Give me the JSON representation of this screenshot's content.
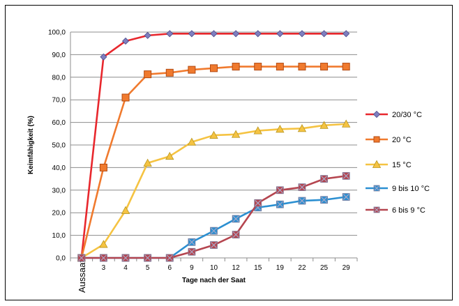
{
  "chart_data": {
    "type": "line",
    "xlabel": "Tage nach der Saat",
    "ylabel": "Keimfähigkeit (%)",
    "categories": [
      "Aussaat",
      "3",
      "4",
      "5",
      "6",
      "9",
      "10",
      "12",
      "15",
      "19",
      "22",
      "25",
      "29"
    ],
    "ylim": [
      0,
      100
    ],
    "yticks": [
      "0,0",
      "10,0",
      "20,0",
      "30,0",
      "40,0",
      "50,0",
      "60,0",
      "70,0",
      "80,0",
      "90,0",
      "100,0"
    ],
    "grid": "horizontal",
    "legend_position": "right",
    "series": [
      {
        "name": "20/30 °C",
        "color": "#e8272d",
        "marker": "diamond",
        "values": [
          0,
          89,
          96,
          98.5,
          99.3,
          99.3,
          99.3,
          99.3,
          99.3,
          99.3,
          99.3,
          99.3,
          99.3
        ]
      },
      {
        "name": "20 °C",
        "color": "#f07a2e",
        "marker": "square",
        "values": [
          0,
          40,
          71,
          81.3,
          82,
          83.3,
          84,
          84.7,
          84.7,
          84.7,
          84.7,
          84.7,
          84.7
        ]
      },
      {
        "name": "15 °C",
        "color": "#f5c342",
        "marker": "triangle",
        "values": [
          0,
          6,
          21,
          42,
          45,
          51.3,
          54.3,
          54.7,
          56.3,
          57,
          57.3,
          58.7,
          59.3
        ]
      },
      {
        "name": "9 bis 10 °C",
        "color": "#2b8fd1",
        "marker": "xsquare",
        "values": [
          0,
          0,
          0,
          0,
          0,
          7,
          12,
          17.3,
          22.3,
          23.7,
          25.3,
          25.7,
          27
        ]
      },
      {
        "name": "6 bis 9 °C",
        "color": "#b5454f",
        "marker": "xsquare",
        "values": [
          0,
          0,
          0,
          0,
          0,
          2.7,
          5.7,
          10.3,
          24.3,
          30,
          31.3,
          35,
          36.3
        ]
      }
    ]
  }
}
